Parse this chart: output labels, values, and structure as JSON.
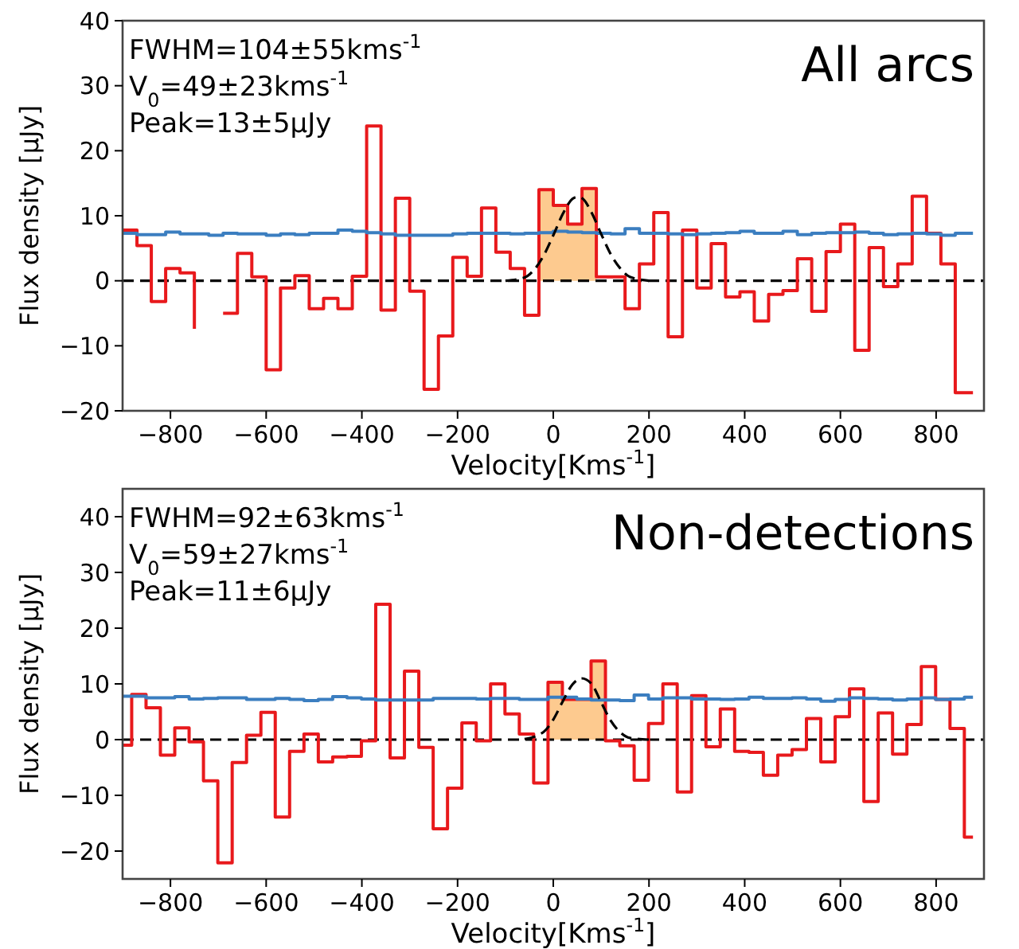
{
  "chart_data": [
    {
      "type": "step",
      "title": "All arcs",
      "xlabel": "Velocity[Kms$^{-1}$]",
      "ylabel": "Flux density [μJy]",
      "annotations": [
        "FWHM=104±55kms$^{-1}$",
        "V$_{0}$=49±23kms$^{-1}$",
        "Peak=13±5μJy"
      ],
      "xlim": [
        -900,
        900
      ],
      "ylim": [
        -20,
        40
      ],
      "xticks": [
        -800,
        -600,
        -400,
        -200,
        0,
        200,
        400,
        600,
        800
      ],
      "yticks": [
        -20,
        -10,
        0,
        10,
        20,
        30,
        40
      ],
      "ref_lines": [
        {
          "axis": "y",
          "value": 0,
          "color": "#000000",
          "line_style": "dashed"
        }
      ],
      "series": [
        {
          "type": "area",
          "color": "#fdca8f",
          "x": [
            -30,
            0,
            30,
            60,
            90
          ],
          "values": [
            14.0,
            11.6,
            8.7,
            14.2,
            14.2
          ]
        },
        {
          "type": "step",
          "color": "#e8191c",
          "x": [
            -900,
            -870,
            -840,
            -810,
            -780,
            -750,
            -720,
            -690,
            -660,
            -630,
            -600,
            -570,
            -540,
            -510,
            -480,
            -450,
            -420,
            -390,
            -360,
            -330,
            -300,
            -270,
            -240,
            -210,
            -180,
            -150,
            -120,
            -90,
            -60,
            -30,
            0,
            30,
            60,
            90,
            120,
            150,
            180,
            210,
            240,
            270,
            300,
            330,
            360,
            390,
            420,
            450,
            480,
            510,
            540,
            570,
            600,
            630,
            660,
            690,
            720,
            750,
            780,
            810,
            840,
            877
          ],
          "values": [
            7.8,
            5.4,
            -3.2,
            1.9,
            1.2,
            -7.4,
            null,
            -5.0,
            4.2,
            0.6,
            -13.7,
            -1.1,
            0.8,
            -4.3,
            -2.7,
            -4.3,
            0.7,
            23.8,
            -4.5,
            12.7,
            -1.6,
            -16.7,
            -8.5,
            3.6,
            0.7,
            11.2,
            4.4,
            1.9,
            -5.3,
            14.0,
            11.6,
            8.7,
            14.2,
            0.6,
            0.6,
            -4.3,
            2.6,
            10.5,
            -8.6,
            7.8,
            -1.1,
            5.7,
            -2.5,
            -1.7,
            -6.2,
            -2.1,
            -1.5,
            3.4,
            -4.7,
            4.5,
            8.7,
            -10.7,
            5.1,
            -0.9,
            2.6,
            13.0,
            7.3,
            2.6,
            -17.2,
            -17.2
          ]
        },
        {
          "type": "step",
          "color": "#3b7ec0",
          "x": [
            -900,
            -870,
            -840,
            -810,
            -780,
            -750,
            -720,
            -690,
            -660,
            -630,
            -600,
            -570,
            -540,
            -510,
            -480,
            -450,
            -420,
            -390,
            -360,
            -330,
            -300,
            -270,
            -240,
            -210,
            -180,
            -150,
            -120,
            -90,
            -60,
            -30,
            0,
            30,
            60,
            90,
            120,
            150,
            180,
            210,
            240,
            270,
            300,
            330,
            360,
            390,
            420,
            450,
            480,
            510,
            540,
            570,
            600,
            630,
            660,
            690,
            720,
            750,
            780,
            810,
            840,
            877
          ],
          "values": [
            7.3,
            7.1,
            7.1,
            7.5,
            7.2,
            7.2,
            7.0,
            7.3,
            7.2,
            7.2,
            7.0,
            7.2,
            7.1,
            7.3,
            7.3,
            7.8,
            7.6,
            7.4,
            7.2,
            7.0,
            7.0,
            7.0,
            7.0,
            7.2,
            7.3,
            7.3,
            7.3,
            7.2,
            7.3,
            7.4,
            7.6,
            7.5,
            7.4,
            7.3,
            7.2,
            8.0,
            7.3,
            7.3,
            7.2,
            7.1,
            7.2,
            7.3,
            7.4,
            7.6,
            7.3,
            7.3,
            7.6,
            7.1,
            7.3,
            7.4,
            7.4,
            7.5,
            7.3,
            7.1,
            7.2,
            7.3,
            7.2,
            7.0,
            7.3,
            7.3
          ]
        },
        {
          "type": "line",
          "color": "#000000",
          "line_style": "dashed",
          "x": [
            -100,
            -60,
            -40,
            -20,
            0,
            20,
            40,
            50,
            60,
            80,
            100,
            120,
            140,
            160,
            200
          ],
          "values": [
            0.0,
            0.5,
            1.7,
            3.9,
            7.0,
            10.3,
            12.6,
            12.9,
            12.7,
            10.5,
            7.2,
            4.1,
            1.9,
            0.6,
            0.0
          ]
        }
      ]
    },
    {
      "type": "step",
      "title": "Non-detections",
      "xlabel": "Velocity[Kms$^{-1}$]",
      "ylabel": "Flux density [μJy]",
      "annotations": [
        "FWHM=92±63kms$^{-1}$",
        "V$_{0}$=59±27kms$^{-1}$",
        "Peak=11±6μJy"
      ],
      "xlim": [
        -900,
        900
      ],
      "ylim": [
        -25,
        45
      ],
      "xticks": [
        -800,
        -600,
        -400,
        -200,
        0,
        200,
        400,
        600,
        800
      ],
      "yticks": [
        -20,
        -10,
        0,
        10,
        20,
        30,
        40
      ],
      "ref_lines": [
        {
          "axis": "y",
          "value": 0,
          "color": "#000000",
          "line_style": "dashed"
        }
      ],
      "series": [
        {
          "type": "area",
          "color": "#fdca8f",
          "x": [
            -11,
            19,
            49,
            79,
            109
          ],
          "values": [
            10.3,
            7.2,
            7.2,
            14.1,
            14.1
          ]
        },
        {
          "type": "step",
          "color": "#e8191c",
          "x": [
            -900,
            -881,
            -851,
            -821,
            -791,
            -761,
            -731,
            -701,
            -671,
            -641,
            -611,
            -581,
            -551,
            -521,
            -491,
            -461,
            -431,
            -401,
            -371,
            -341,
            -311,
            -281,
            -251,
            -221,
            -191,
            -161,
            -131,
            -101,
            -71,
            -41,
            -11,
            19,
            49,
            79,
            109,
            139,
            169,
            199,
            229,
            259,
            289,
            319,
            349,
            379,
            409,
            439,
            469,
            499,
            529,
            559,
            589,
            619,
            649,
            679,
            709,
            739,
            769,
            799,
            829,
            859,
            877
          ],
          "values": [
            -1.0,
            8.1,
            5.7,
            -2.8,
            2.1,
            -0.4,
            -7.4,
            -22.1,
            -4.1,
            0.8,
            4.9,
            -13.9,
            -2.1,
            1.0,
            -4.0,
            -3.1,
            -3.0,
            -0.2,
            24.3,
            -3.3,
            12.3,
            -1.4,
            -16.0,
            -8.7,
            3.0,
            -0.2,
            10.0,
            4.6,
            1.0,
            -7.8,
            10.3,
            7.2,
            7.2,
            14.1,
            -0.2,
            -1.1,
            -7.3,
            2.9,
            10.0,
            -9.4,
            7.9,
            -1.3,
            5.5,
            -2.1,
            -2.3,
            -6.4,
            -2.8,
            -1.8,
            3.8,
            -4.0,
            4.1,
            9.1,
            -11.1,
            4.8,
            -2.6,
            2.7,
            13.1,
            7.2,
            2.0,
            -17.5,
            -17.5
          ]
        },
        {
          "type": "step",
          "color": "#3b7ec0",
          "x": [
            -900,
            -881,
            -851,
            -821,
            -791,
            -761,
            -731,
            -701,
            -671,
            -641,
            -611,
            -581,
            -551,
            -521,
            -491,
            -461,
            -431,
            -401,
            -371,
            -341,
            -311,
            -281,
            -251,
            -221,
            -191,
            -161,
            -131,
            -101,
            -71,
            -41,
            -11,
            19,
            49,
            79,
            109,
            139,
            169,
            199,
            229,
            259,
            289,
            319,
            349,
            379,
            409,
            439,
            469,
            499,
            529,
            559,
            589,
            619,
            649,
            679,
            709,
            739,
            769,
            799,
            829,
            859,
            877
          ],
          "values": [
            7.8,
            7.8,
            7.5,
            7.5,
            7.7,
            7.3,
            7.4,
            7.5,
            7.5,
            7.2,
            7.2,
            7.4,
            7.2,
            7.0,
            7.2,
            7.7,
            7.5,
            7.3,
            7.1,
            7.1,
            7.1,
            7.1,
            7.4,
            7.4,
            7.4,
            7.3,
            7.4,
            7.4,
            7.2,
            7.2,
            7.6,
            7.6,
            7.3,
            7.1,
            7.1,
            7.0,
            8.0,
            7.3,
            7.5,
            7.5,
            7.3,
            7.3,
            7.2,
            7.3,
            7.6,
            7.4,
            7.4,
            7.5,
            7.3,
            6.9,
            7.2,
            7.5,
            7.4,
            7.3,
            7.1,
            7.3,
            7.5,
            7.2,
            7.3,
            7.6,
            7.6
          ]
        },
        {
          "type": "line",
          "color": "#000000",
          "line_style": "dashed",
          "x": [
            -60,
            -20,
            0,
            20,
            40,
            59,
            80,
            100,
            120,
            140,
            160,
            200
          ],
          "values": [
            0.1,
            1.4,
            3.6,
            6.9,
            9.9,
            11.0,
            10.0,
            6.7,
            3.4,
            1.3,
            0.3,
            0.0
          ]
        }
      ]
    }
  ]
}
